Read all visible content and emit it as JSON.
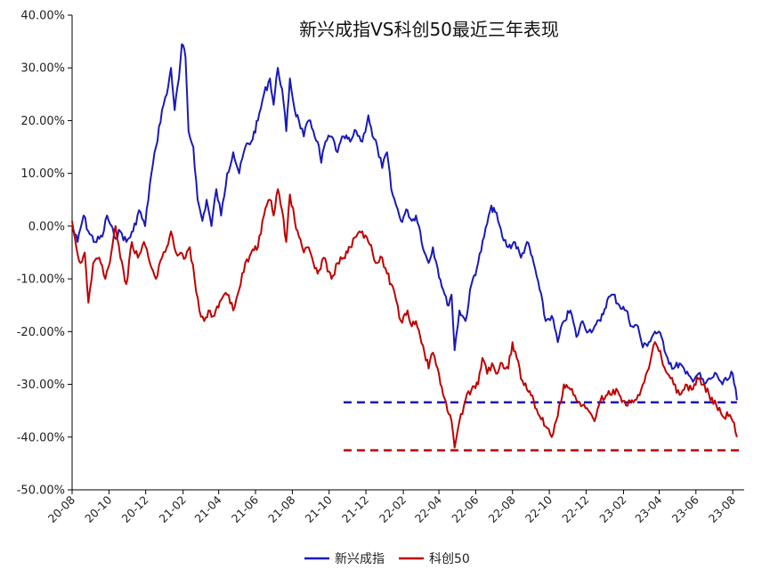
{
  "chart_data": {
    "type": "line",
    "title": "新兴成指VS科创50最近三年表现",
    "xlabel": "",
    "ylabel": "",
    "ylim": [
      -0.5,
      0.4
    ],
    "yticks": [
      0.4,
      0.3,
      0.2,
      0.1,
      0.0,
      -0.1,
      -0.2,
      -0.3,
      -0.4,
      -0.5
    ],
    "ytick_labels": [
      "40.00%",
      "30.00%",
      "20.00%",
      "10.00%",
      "0.00%",
      "-10.00%",
      "-20.00%",
      "-30.00%",
      "-40.00%",
      "-50.00%"
    ],
    "xlim": [
      "2020-08-01",
      "2023-08-20"
    ],
    "xtick_labels": [
      "20-08",
      "20-10",
      "20-12",
      "21-02",
      "21-04",
      "21-06",
      "21-08",
      "21-10",
      "21-12",
      "22-02",
      "22-04",
      "22-06",
      "22-08",
      "22-10",
      "22-12",
      "23-02",
      "23-04",
      "23-06",
      "23-08"
    ],
    "xtick_dates": [
      "2020-08-01",
      "2020-10-01",
      "2020-12-01",
      "2021-02-01",
      "2021-04-01",
      "2021-06-01",
      "2021-08-01",
      "2021-10-01",
      "2021-12-01",
      "2022-02-01",
      "2022-04-01",
      "2022-06-01",
      "2022-08-01",
      "2022-10-01",
      "2022-12-01",
      "2023-02-01",
      "2023-04-01",
      "2023-06-01",
      "2023-08-01"
    ],
    "grid": false,
    "legend_position": "bottom",
    "series": [
      {
        "name": "新兴成指",
        "color": "#1a1ab8",
        "points": [
          [
            "2020-08-01",
            0.0
          ],
          [
            "2020-08-10",
            -0.03
          ],
          [
            "2020-08-20",
            0.02
          ],
          [
            "2020-08-28",
            -0.01
          ],
          [
            "2020-09-08",
            -0.03
          ],
          [
            "2020-09-20",
            -0.02
          ],
          [
            "2020-09-28",
            0.02
          ],
          [
            "2020-10-10",
            -0.02
          ],
          [
            "2020-10-20",
            -0.01
          ],
          [
            "2020-10-30",
            -0.03
          ],
          [
            "2020-11-10",
            -0.01
          ],
          [
            "2020-11-20",
            0.03
          ],
          [
            "2020-11-30",
            0.0
          ],
          [
            "2020-12-08",
            0.08
          ],
          [
            "2020-12-18",
            0.15
          ],
          [
            "2020-12-28",
            0.22
          ],
          [
            "2021-01-05",
            0.25
          ],
          [
            "2021-01-12",
            0.3
          ],
          [
            "2021-01-18",
            0.22
          ],
          [
            "2021-01-25",
            0.28
          ],
          [
            "2021-01-30",
            0.345
          ],
          [
            "2021-02-05",
            0.32
          ],
          [
            "2021-02-10",
            0.18
          ],
          [
            "2021-02-18",
            0.15
          ],
          [
            "2021-02-25",
            0.05
          ],
          [
            "2021-03-05",
            0.01
          ],
          [
            "2021-03-12",
            0.05
          ],
          [
            "2021-03-20",
            0.0
          ],
          [
            "2021-03-28",
            0.07
          ],
          [
            "2021-04-05",
            0.02
          ],
          [
            "2021-04-15",
            0.1
          ],
          [
            "2021-04-25",
            0.14
          ],
          [
            "2021-05-05",
            0.1
          ],
          [
            "2021-05-15",
            0.15
          ],
          [
            "2021-05-25",
            0.16
          ],
          [
            "2021-06-05",
            0.2
          ],
          [
            "2021-06-15",
            0.25
          ],
          [
            "2021-06-25",
            0.28
          ],
          [
            "2021-07-01",
            0.23
          ],
          [
            "2021-07-08",
            0.3
          ],
          [
            "2021-07-15",
            0.26
          ],
          [
            "2021-07-22",
            0.18
          ],
          [
            "2021-07-28",
            0.28
          ],
          [
            "2021-08-05",
            0.22
          ],
          [
            "2021-08-12",
            0.2
          ],
          [
            "2021-08-20",
            0.17
          ],
          [
            "2021-08-28",
            0.2
          ],
          [
            "2021-09-05",
            0.18
          ],
          [
            "2021-09-12",
            0.16
          ],
          [
            "2021-09-18",
            0.12
          ],
          [
            "2021-09-25",
            0.16
          ],
          [
            "2021-10-05",
            0.17
          ],
          [
            "2021-10-15",
            0.14
          ],
          [
            "2021-10-25",
            0.17
          ],
          [
            "2021-11-05",
            0.16
          ],
          [
            "2021-11-15",
            0.18
          ],
          [
            "2021-11-25",
            0.16
          ],
          [
            "2021-12-05",
            0.21
          ],
          [
            "2021-12-12",
            0.17
          ],
          [
            "2021-12-20",
            0.15
          ],
          [
            "2021-12-28",
            0.11
          ],
          [
            "2022-01-05",
            0.14
          ],
          [
            "2022-01-12",
            0.07
          ],
          [
            "2022-01-20",
            0.04
          ],
          [
            "2022-01-28",
            0.01
          ],
          [
            "2022-02-08",
            0.03
          ],
          [
            "2022-02-15",
            0.01
          ],
          [
            "2022-02-22",
            0.02
          ],
          [
            "2022-03-01",
            -0.01
          ],
          [
            "2022-03-08",
            -0.05
          ],
          [
            "2022-03-15",
            -0.07
          ],
          [
            "2022-03-22",
            -0.04
          ],
          [
            "2022-03-30",
            -0.08
          ],
          [
            "2022-04-08",
            -0.12
          ],
          [
            "2022-04-15",
            -0.15
          ],
          [
            "2022-04-22",
            -0.13
          ],
          [
            "2022-04-27",
            -0.235
          ],
          [
            "2022-05-05",
            -0.16
          ],
          [
            "2022-05-15",
            -0.18
          ],
          [
            "2022-05-25",
            -0.11
          ],
          [
            "2022-06-05",
            -0.07
          ],
          [
            "2022-06-15",
            -0.02
          ],
          [
            "2022-06-25",
            0.03
          ],
          [
            "2022-07-01",
            0.035
          ],
          [
            "2022-07-08",
            0.01
          ],
          [
            "2022-07-15",
            -0.02
          ],
          [
            "2022-07-25",
            -0.04
          ],
          [
            "2022-08-05",
            -0.03
          ],
          [
            "2022-08-15",
            -0.06
          ],
          [
            "2022-08-25",
            -0.03
          ],
          [
            "2022-09-05",
            -0.07
          ],
          [
            "2022-09-15",
            -0.12
          ],
          [
            "2022-09-25",
            -0.18
          ],
          [
            "2022-10-05",
            -0.17
          ],
          [
            "2022-10-15",
            -0.22
          ],
          [
            "2022-10-25",
            -0.18
          ],
          [
            "2022-11-05",
            -0.16
          ],
          [
            "2022-11-15",
            -0.21
          ],
          [
            "2022-11-25",
            -0.18
          ],
          [
            "2022-12-05",
            -0.2
          ],
          [
            "2022-12-15",
            -0.19
          ],
          [
            "2022-12-25",
            -0.18
          ],
          [
            "2023-01-05",
            -0.14
          ],
          [
            "2023-01-15",
            -0.13
          ],
          [
            "2023-01-25",
            -0.15
          ],
          [
            "2023-02-05",
            -0.16
          ],
          [
            "2023-02-15",
            -0.19
          ],
          [
            "2023-02-25",
            -0.19
          ],
          [
            "2023-03-05",
            -0.23
          ],
          [
            "2023-03-15",
            -0.22
          ],
          [
            "2023-03-25",
            -0.2
          ],
          [
            "2023-04-05",
            -0.21
          ],
          [
            "2023-04-15",
            -0.25
          ],
          [
            "2023-04-25",
            -0.27
          ],
          [
            "2023-05-05",
            -0.26
          ],
          [
            "2023-05-15",
            -0.28
          ],
          [
            "2023-05-25",
            -0.29
          ],
          [
            "2023-06-05",
            -0.28
          ],
          [
            "2023-06-15",
            -0.3
          ],
          [
            "2023-06-25",
            -0.29
          ],
          [
            "2023-07-05",
            -0.28
          ],
          [
            "2023-07-15",
            -0.3
          ],
          [
            "2023-07-25",
            -0.29
          ],
          [
            "2023-08-01",
            -0.28
          ],
          [
            "2023-08-08",
            -0.33
          ]
        ]
      },
      {
        "name": "科创50",
        "color": "#c00000",
        "points": [
          [
            "2020-08-01",
            0.01
          ],
          [
            "2020-08-08",
            -0.04
          ],
          [
            "2020-08-15",
            -0.07
          ],
          [
            "2020-08-22",
            -0.05
          ],
          [
            "2020-08-28",
            -0.145
          ],
          [
            "2020-09-05",
            -0.07
          ],
          [
            "2020-09-15",
            -0.06
          ],
          [
            "2020-09-25",
            -0.1
          ],
          [
            "2020-10-05",
            -0.05
          ],
          [
            "2020-10-12",
            0.0
          ],
          [
            "2020-10-20",
            -0.06
          ],
          [
            "2020-10-30",
            -0.11
          ],
          [
            "2020-11-08",
            -0.03
          ],
          [
            "2020-11-18",
            -0.06
          ],
          [
            "2020-11-28",
            -0.03
          ],
          [
            "2020-12-08",
            -0.07
          ],
          [
            "2020-12-18",
            -0.1
          ],
          [
            "2020-12-28",
            -0.06
          ],
          [
            "2021-01-05",
            -0.04
          ],
          [
            "2021-01-12",
            -0.01
          ],
          [
            "2021-01-20",
            -0.05
          ],
          [
            "2021-01-28",
            -0.05
          ],
          [
            "2021-02-05",
            -0.06
          ],
          [
            "2021-02-12",
            -0.04
          ],
          [
            "2021-02-20",
            -0.1
          ],
          [
            "2021-02-28",
            -0.16
          ],
          [
            "2021-03-08",
            -0.18
          ],
          [
            "2021-03-15",
            -0.16
          ],
          [
            "2021-03-25",
            -0.17
          ],
          [
            "2021-04-05",
            -0.14
          ],
          [
            "2021-04-15",
            -0.13
          ],
          [
            "2021-04-25",
            -0.16
          ],
          [
            "2021-05-05",
            -0.12
          ],
          [
            "2021-05-15",
            -0.07
          ],
          [
            "2021-05-25",
            -0.05
          ],
          [
            "2021-06-05",
            -0.04
          ],
          [
            "2021-06-15",
            0.02
          ],
          [
            "2021-06-25",
            0.05
          ],
          [
            "2021-07-01",
            0.02
          ],
          [
            "2021-07-08",
            0.07
          ],
          [
            "2021-07-15",
            0.03
          ],
          [
            "2021-07-22",
            -0.03
          ],
          [
            "2021-07-28",
            0.06
          ],
          [
            "2021-08-05",
            0.01
          ],
          [
            "2021-08-12",
            -0.02
          ],
          [
            "2021-08-20",
            -0.05
          ],
          [
            "2021-08-28",
            -0.04
          ],
          [
            "2021-09-05",
            -0.07
          ],
          [
            "2021-09-12",
            -0.09
          ],
          [
            "2021-09-22",
            -0.06
          ],
          [
            "2021-10-05",
            -0.1
          ],
          [
            "2021-10-15",
            -0.07
          ],
          [
            "2021-10-25",
            -0.06
          ],
          [
            "2021-11-05",
            -0.04
          ],
          [
            "2021-11-15",
            -0.02
          ],
          [
            "2021-11-25",
            -0.01
          ],
          [
            "2021-12-05",
            -0.03
          ],
          [
            "2021-12-12",
            -0.05
          ],
          [
            "2021-12-20",
            -0.07
          ],
          [
            "2021-12-28",
            -0.06
          ],
          [
            "2022-01-05",
            -0.09
          ],
          [
            "2022-01-12",
            -0.11
          ],
          [
            "2022-01-20",
            -0.14
          ],
          [
            "2022-01-28",
            -0.18
          ],
          [
            "2022-02-08",
            -0.16
          ],
          [
            "2022-02-15",
            -0.19
          ],
          [
            "2022-02-22",
            -0.18
          ],
          [
            "2022-03-01",
            -0.21
          ],
          [
            "2022-03-08",
            -0.24
          ],
          [
            "2022-03-15",
            -0.27
          ],
          [
            "2022-03-22",
            -0.24
          ],
          [
            "2022-03-30",
            -0.27
          ],
          [
            "2022-04-08",
            -0.32
          ],
          [
            "2022-04-15",
            -0.35
          ],
          [
            "2022-04-22",
            -0.37
          ],
          [
            "2022-04-27",
            -0.42
          ],
          [
            "2022-05-05",
            -0.37
          ],
          [
            "2022-05-15",
            -0.33
          ],
          [
            "2022-05-25",
            -0.31
          ],
          [
            "2022-06-05",
            -0.3
          ],
          [
            "2022-06-12",
            -0.25
          ],
          [
            "2022-06-20",
            -0.28
          ],
          [
            "2022-06-28",
            -0.26
          ],
          [
            "2022-07-05",
            -0.28
          ],
          [
            "2022-07-15",
            -0.26
          ],
          [
            "2022-07-25",
            -0.27
          ],
          [
            "2022-08-01",
            -0.22
          ],
          [
            "2022-08-08",
            -0.25
          ],
          [
            "2022-08-15",
            -0.29
          ],
          [
            "2022-08-25",
            -0.31
          ],
          [
            "2022-09-05",
            -0.33
          ],
          [
            "2022-09-15",
            -0.36
          ],
          [
            "2022-09-25",
            -0.38
          ],
          [
            "2022-10-05",
            -0.4
          ],
          [
            "2022-10-15",
            -0.36
          ],
          [
            "2022-10-25",
            -0.3
          ],
          [
            "2022-11-05",
            -0.31
          ],
          [
            "2022-11-15",
            -0.33
          ],
          [
            "2022-11-25",
            -0.34
          ],
          [
            "2022-12-05",
            -0.35
          ],
          [
            "2022-12-15",
            -0.37
          ],
          [
            "2022-12-25",
            -0.33
          ],
          [
            "2023-01-05",
            -0.32
          ],
          [
            "2023-01-15",
            -0.31
          ],
          [
            "2023-01-25",
            -0.32
          ],
          [
            "2023-02-05",
            -0.34
          ],
          [
            "2023-02-15",
            -0.33
          ],
          [
            "2023-02-25",
            -0.32
          ],
          [
            "2023-03-05",
            -0.3
          ],
          [
            "2023-03-15",
            -0.27
          ],
          [
            "2023-03-25",
            -0.22
          ],
          [
            "2023-04-05",
            -0.25
          ],
          [
            "2023-04-15",
            -0.28
          ],
          [
            "2023-04-25",
            -0.3
          ],
          [
            "2023-05-05",
            -0.32
          ],
          [
            "2023-05-15",
            -0.3
          ],
          [
            "2023-05-25",
            -0.31
          ],
          [
            "2023-06-05",
            -0.29
          ],
          [
            "2023-06-15",
            -0.3
          ],
          [
            "2023-06-25",
            -0.33
          ],
          [
            "2023-07-05",
            -0.34
          ],
          [
            "2023-07-15",
            -0.36
          ],
          [
            "2023-07-25",
            -0.36
          ],
          [
            "2023-08-01",
            -0.37
          ],
          [
            "2023-08-08",
            -0.4
          ]
        ]
      }
    ],
    "reference_lines": [
      {
        "series": "新兴成指",
        "y": -0.334,
        "x_start": "2021-10-25",
        "x_end": "2023-08-08",
        "style": "dashed",
        "color": "#1a1ab8"
      },
      {
        "series": "科创50",
        "y": -0.425,
        "x_start": "2021-10-25",
        "x_end": "2023-08-20",
        "style": "dashed",
        "color": "#c00000"
      }
    ]
  }
}
